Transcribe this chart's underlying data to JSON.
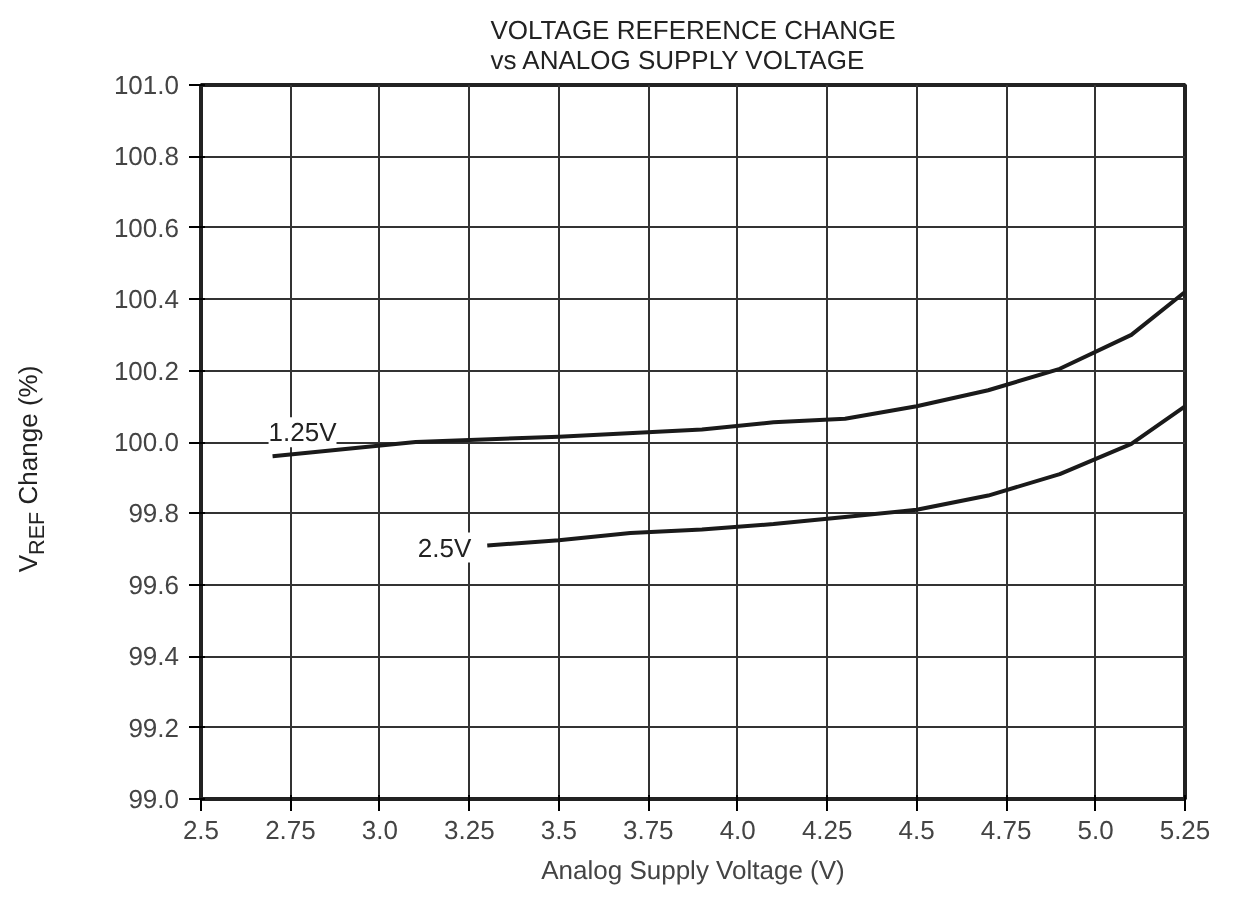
{
  "chart_data": {
    "type": "line",
    "title": "VOLTAGE REFERENCE CHANGE\nvs ANALOG SUPPLY VOLTAGE",
    "xlabel": "Analog Supply Voltage (V)",
    "ylabel": "V$_{REF}$ Change (%)",
    "xlim": [
      2.5,
      5.25
    ],
    "ylim": [
      99.0,
      101.0
    ],
    "xticks": [
      2.5,
      2.75,
      {
        "value": 3.0,
        "label": "3.0"
      },
      3.25,
      3.5,
      3.75,
      {
        "value": 4.0,
        "label": "4.0"
      },
      4.25,
      4.5,
      4.75,
      {
        "value": 5.0,
        "label": "5.0"
      },
      5.25
    ],
    "yticks": [
      {
        "value": 99.0,
        "label": "99.0"
      },
      99.2,
      99.4,
      99.6,
      99.8,
      {
        "value": 100.0,
        "label": "100.0"
      },
      100.2,
      100.4,
      100.6,
      100.8,
      {
        "value": 101.0,
        "label": "101.0"
      }
    ],
    "grid": true,
    "series": [
      {
        "color": "#1a1a1a",
        "x": [
          2.7,
          3.1,
          3.5,
          3.9,
          4.1,
          4.3,
          4.5,
          4.7,
          4.9,
          5.1,
          5.25
        ],
        "values": [
          99.96,
          100.0,
          100.015,
          100.035,
          100.055,
          100.065,
          100.1,
          100.145,
          100.205,
          100.3,
          100.42
        ]
      },
      {
        "color": "#1a1a1a",
        "x": [
          3.3,
          3.5,
          3.7,
          3.9,
          4.1,
          4.3,
          4.5,
          4.7,
          4.9,
          5.1,
          5.25
        ],
        "values": [
          99.71,
          99.725,
          99.745,
          99.755,
          99.77,
          99.79,
          99.81,
          99.85,
          99.91,
          99.995,
          100.1
        ]
      }
    ],
    "annotations": [
      "1.25V",
      "2.5V"
    ]
  }
}
